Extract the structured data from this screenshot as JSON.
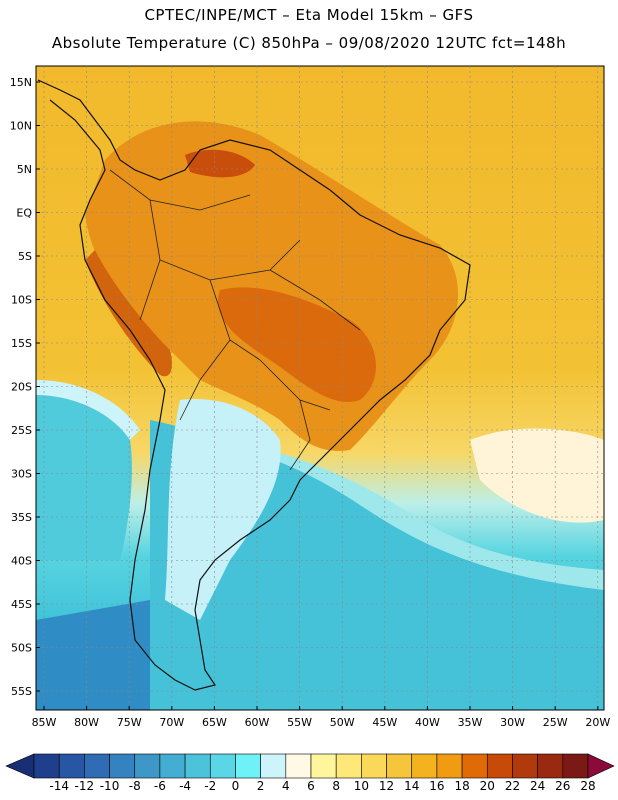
{
  "header": {
    "line1": "CPTEC/INPE/MCT –  Eta Model 15km – GFS",
    "line2": "Absolute Temperature (C) 850hPa – 09/08/2020 12UTC fct=148h"
  },
  "map": {
    "lat_ticks": [
      "15N",
      "10N",
      "5N",
      "EQ",
      "5S",
      "10S",
      "15S",
      "20S",
      "25S",
      "30S",
      "35S",
      "40S",
      "45S",
      "50S",
      "55S"
    ],
    "lon_ticks": [
      "85W",
      "80W",
      "75W",
      "70W",
      "65W",
      "60W",
      "55W",
      "50W",
      "45W",
      "40W",
      "35W",
      "30W",
      "25W",
      "20W"
    ]
  },
  "colorbar": {
    "labels": [
      "-14",
      "-12",
      "-10",
      "-8",
      "-6",
      "-4",
      "-2",
      "0",
      "2",
      "4",
      "6",
      "8",
      "10",
      "12",
      "14",
      "16",
      "18",
      "20",
      "22",
      "24",
      "26",
      "28"
    ],
    "colors": [
      "#1f3f8c",
      "#2756a4",
      "#2f6cb4",
      "#3582c0",
      "#3d98c8",
      "#44aed2",
      "#4cc2db",
      "#5ad6e6",
      "#6ff2f7",
      "#cdf3fb",
      "#fff9e6",
      "#fff59c",
      "#fde878",
      "#f9d85a",
      "#f5c53c",
      "#f3b21e",
      "#f09b12",
      "#e06b06",
      "#c84a08",
      "#b03a0b",
      "#992a10",
      "#7b1a14"
    ],
    "low_color": "#1a2f73",
    "high_color": "#8c0a3a"
  }
}
